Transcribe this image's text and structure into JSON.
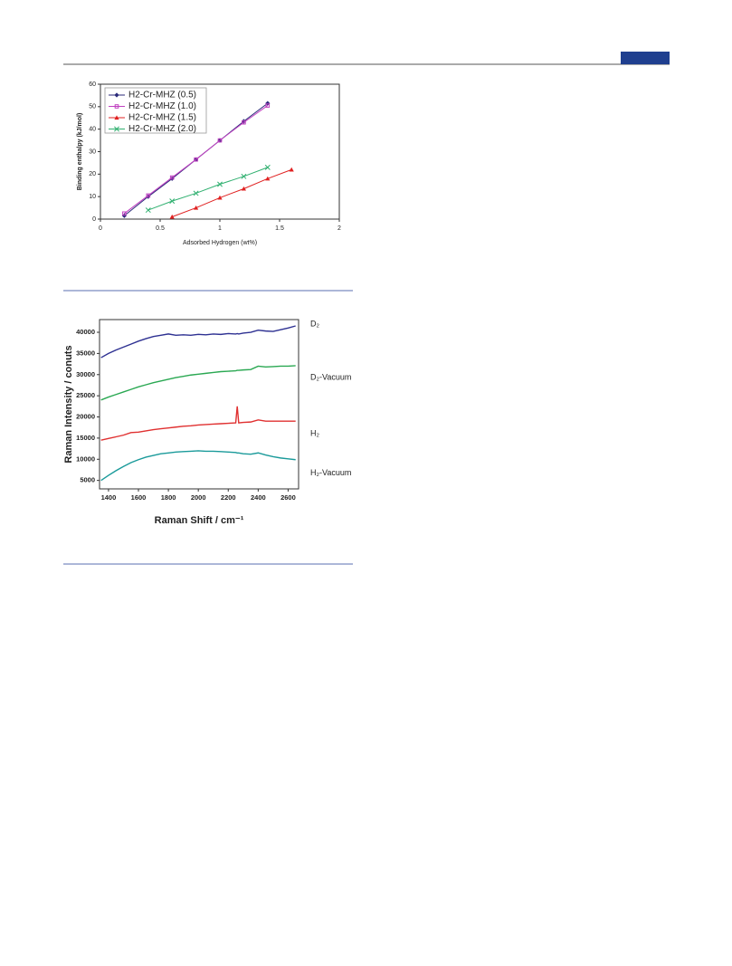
{
  "chart_data": [
    {
      "type": "line",
      "xlabel": "Adsorbed Hydrogen (wt%)",
      "ylabel": "Binding enthalpy (kJ/mol)",
      "xlim": [
        0,
        2
      ],
      "xticks": [
        0,
        0.5,
        1,
        1.5,
        2
      ],
      "ylim": [
        0,
        60
      ],
      "yticks": [
        0,
        10,
        20,
        30,
        40,
        50,
        60
      ],
      "legend": "upper left",
      "series": [
        {
          "name": "H2-Cr-MHZ (0.5)",
          "color": "#2b2a7a",
          "marker": "diamond",
          "x": [
            0.2,
            0.4,
            0.6,
            0.8,
            1.0,
            1.2,
            1.4
          ],
          "values": [
            1.5,
            10,
            18,
            26.5,
            35,
            43.5,
            51.5
          ]
        },
        {
          "name": "H2-Cr-MHZ (1.0)",
          "color": "#c040c0",
          "marker": "square",
          "x": [
            0.2,
            0.4,
            0.6,
            0.8,
            1.0,
            1.2,
            1.4
          ],
          "values": [
            2.5,
            10.5,
            18.5,
            26.5,
            35,
            43,
            50.5
          ]
        },
        {
          "name": "H2-Cr-MHZ (1.5)",
          "color": "#e02020",
          "marker": "triangle",
          "x": [
            0.6,
            0.8,
            1.0,
            1.2,
            1.4,
            1.6
          ],
          "values": [
            1,
            5,
            9.5,
            13.5,
            18,
            22
          ]
        },
        {
          "name": "H2-Cr-MHZ (2.0)",
          "color": "#30b070",
          "marker": "cross",
          "x": [
            0.4,
            0.6,
            0.8,
            1.0,
            1.2,
            1.4
          ],
          "values": [
            4,
            8,
            11.5,
            15.5,
            19,
            23
          ]
        }
      ]
    },
    {
      "type": "line",
      "xlabel": "Raman Shift / cm⁻¹",
      "ylabel": "Raman Intensity / conuts",
      "xlim": [
        1340,
        2670
      ],
      "xticks": [
        1400,
        1600,
        1800,
        2000,
        2200,
        2400,
        2600
      ],
      "ylim": [
        3000,
        43000
      ],
      "yticks": [
        5000,
        10000,
        15000,
        20000,
        25000,
        30000,
        35000,
        40000
      ],
      "legend": "right",
      "x": [
        1350,
        1400,
        1450,
        1500,
        1550,
        1600,
        1650,
        1700,
        1750,
        1800,
        1850,
        1900,
        1950,
        2000,
        2050,
        2100,
        2150,
        2200,
        2250,
        2260,
        2270,
        2300,
        2350,
        2400,
        2450,
        2500,
        2550,
        2600,
        2650
      ],
      "series": [
        {
          "name": "D₂",
          "color": "#2e3192",
          "values": [
            34000,
            35000,
            35800,
            36500,
            37200,
            37900,
            38500,
            39000,
            39300,
            39600,
            39300,
            39400,
            39300,
            39500,
            39400,
            39600,
            39500,
            39700,
            39600,
            39700,
            39600,
            39800,
            40000,
            40500,
            40300,
            40200,
            40600,
            41000,
            41500
          ]
        },
        {
          "name": "D₂-Vacuum",
          "color": "#2aa852",
          "values": [
            24000,
            24700,
            25300,
            25900,
            26500,
            27100,
            27600,
            28100,
            28500,
            28900,
            29300,
            29600,
            29900,
            30100,
            30300,
            30500,
            30700,
            30800,
            30900,
            31000,
            31000,
            31100,
            31200,
            32000,
            31800,
            31900,
            32000,
            32000,
            32100
          ]
        },
        {
          "name": "H₂",
          "color": "#e03030",
          "values": [
            14500,
            14900,
            15300,
            15700,
            16300,
            16400,
            16700,
            17000,
            17200,
            17400,
            17600,
            17800,
            17900,
            18100,
            18200,
            18300,
            18400,
            18500,
            18600,
            22500,
            18600,
            18700,
            18800,
            19300,
            19000,
            19000,
            19000,
            19000,
            19000
          ]
        },
        {
          "name": "H₂-Vacuum",
          "color": "#1a9a9a",
          "values": [
            5000,
            6200,
            7300,
            8300,
            9200,
            9900,
            10500,
            10900,
            11300,
            11500,
            11700,
            11800,
            11900,
            12000,
            11900,
            11900,
            11800,
            11700,
            11600,
            11500,
            11500,
            11300,
            11200,
            11500,
            11000,
            10600,
            10300,
            10100,
            9900
          ]
        }
      ]
    }
  ]
}
